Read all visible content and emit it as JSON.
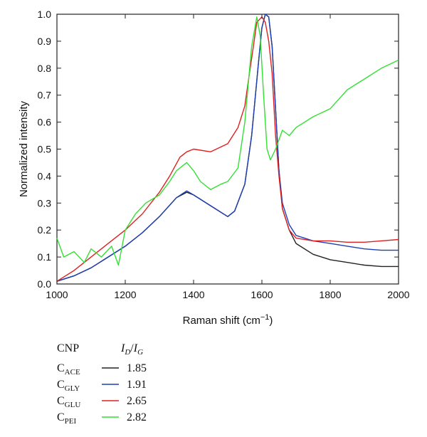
{
  "chart_data": {
    "type": "line",
    "title": "",
    "xlabel": "Raman shift (cm",
    "xlabel_sup": "−1",
    "xlabel_tail": ")",
    "ylabel": "Normalized intensity",
    "xlim": [
      1000,
      2000
    ],
    "ylim": [
      0,
      1.0
    ],
    "xticks": [
      1000,
      1200,
      1400,
      1600,
      1800,
      2000
    ],
    "yticks": [
      0.0,
      0.1,
      0.2,
      0.3,
      0.4,
      0.5,
      0.6,
      0.7,
      0.8,
      0.9,
      1.0
    ],
    "ytick_labels": [
      "0.0",
      "0.1",
      "0.2",
      "0.3",
      "0.4",
      "0.5",
      "0.6",
      "0.7",
      "0.8",
      "0.9",
      "1.0"
    ],
    "grid": false,
    "legend_placement": "bottom-left, below plot",
    "legend_header": {
      "col1": "CNP",
      "col2_main1": "I",
      "col2_sub1": "D",
      "col2_sep": "/",
      "col2_main2": "I",
      "col2_sub2": "G"
    },
    "series": [
      {
        "name": "C",
        "name_sub": "ACE",
        "ratio": "1.85",
        "color": "#222222",
        "x": [
          1000,
          1050,
          1100,
          1150,
          1200,
          1250,
          1300,
          1350,
          1380,
          1400,
          1450,
          1500,
          1520,
          1550,
          1570,
          1590,
          1600,
          1610,
          1620,
          1630,
          1640,
          1650,
          1660,
          1680,
          1700,
          1750,
          1800,
          1850,
          1900,
          1950,
          2000
        ],
        "y": [
          0.01,
          0.03,
          0.06,
          0.1,
          0.14,
          0.19,
          0.25,
          0.32,
          0.34,
          0.33,
          0.29,
          0.25,
          0.27,
          0.37,
          0.55,
          0.82,
          0.95,
          1.0,
          0.99,
          0.88,
          0.65,
          0.42,
          0.28,
          0.2,
          0.15,
          0.11,
          0.09,
          0.08,
          0.07,
          0.065,
          0.065
        ]
      },
      {
        "name": "C",
        "name_sub": "GLY",
        "ratio": "1.91",
        "color": "#1f3fb5",
        "x": [
          1000,
          1050,
          1100,
          1150,
          1200,
          1250,
          1300,
          1350,
          1380,
          1400,
          1450,
          1500,
          1520,
          1550,
          1570,
          1590,
          1600,
          1610,
          1620,
          1630,
          1640,
          1650,
          1660,
          1680,
          1700,
          1750,
          1800,
          1850,
          1900,
          1950,
          2000
        ],
        "y": [
          0.01,
          0.03,
          0.06,
          0.1,
          0.14,
          0.19,
          0.25,
          0.32,
          0.345,
          0.33,
          0.29,
          0.25,
          0.27,
          0.37,
          0.55,
          0.82,
          0.95,
          1.0,
          0.99,
          0.88,
          0.65,
          0.42,
          0.3,
          0.22,
          0.18,
          0.16,
          0.15,
          0.14,
          0.13,
          0.125,
          0.125
        ]
      },
      {
        "name": "C",
        "name_sub": "GLU",
        "ratio": "2.65",
        "color": "#e02020",
        "x": [
          1000,
          1050,
          1100,
          1150,
          1200,
          1250,
          1300,
          1330,
          1360,
          1380,
          1400,
          1450,
          1500,
          1530,
          1550,
          1560,
          1575,
          1585,
          1600,
          1610,
          1620,
          1630,
          1640,
          1650,
          1660,
          1680,
          1700,
          1750,
          1800,
          1850,
          1900,
          1950,
          2000
        ],
        "y": [
          0.01,
          0.05,
          0.1,
          0.15,
          0.2,
          0.26,
          0.34,
          0.4,
          0.47,
          0.49,
          0.5,
          0.49,
          0.52,
          0.58,
          0.66,
          0.75,
          0.88,
          0.97,
          0.99,
          0.97,
          0.9,
          0.78,
          0.55,
          0.4,
          0.28,
          0.2,
          0.17,
          0.16,
          0.16,
          0.155,
          0.155,
          0.16,
          0.165
        ]
      },
      {
        "name": "C",
        "name_sub": "PEI",
        "ratio": "2.82",
        "color": "#33e033",
        "x": [
          1000,
          1020,
          1050,
          1080,
          1100,
          1130,
          1160,
          1180,
          1200,
          1230,
          1260,
          1300,
          1330,
          1350,
          1380,
          1400,
          1420,
          1450,
          1480,
          1500,
          1530,
          1550,
          1570,
          1585,
          1595,
          1605,
          1615,
          1625,
          1640,
          1660,
          1680,
          1700,
          1750,
          1800,
          1850,
          1900,
          1950,
          2000
        ],
        "y": [
          0.17,
          0.1,
          0.12,
          0.08,
          0.13,
          0.1,
          0.14,
          0.07,
          0.2,
          0.26,
          0.3,
          0.33,
          0.38,
          0.42,
          0.45,
          0.42,
          0.38,
          0.35,
          0.37,
          0.38,
          0.43,
          0.6,
          0.88,
          0.99,
          0.92,
          0.7,
          0.5,
          0.46,
          0.5,
          0.57,
          0.55,
          0.58,
          0.62,
          0.65,
          0.72,
          0.76,
          0.8,
          0.83
        ]
      }
    ]
  }
}
